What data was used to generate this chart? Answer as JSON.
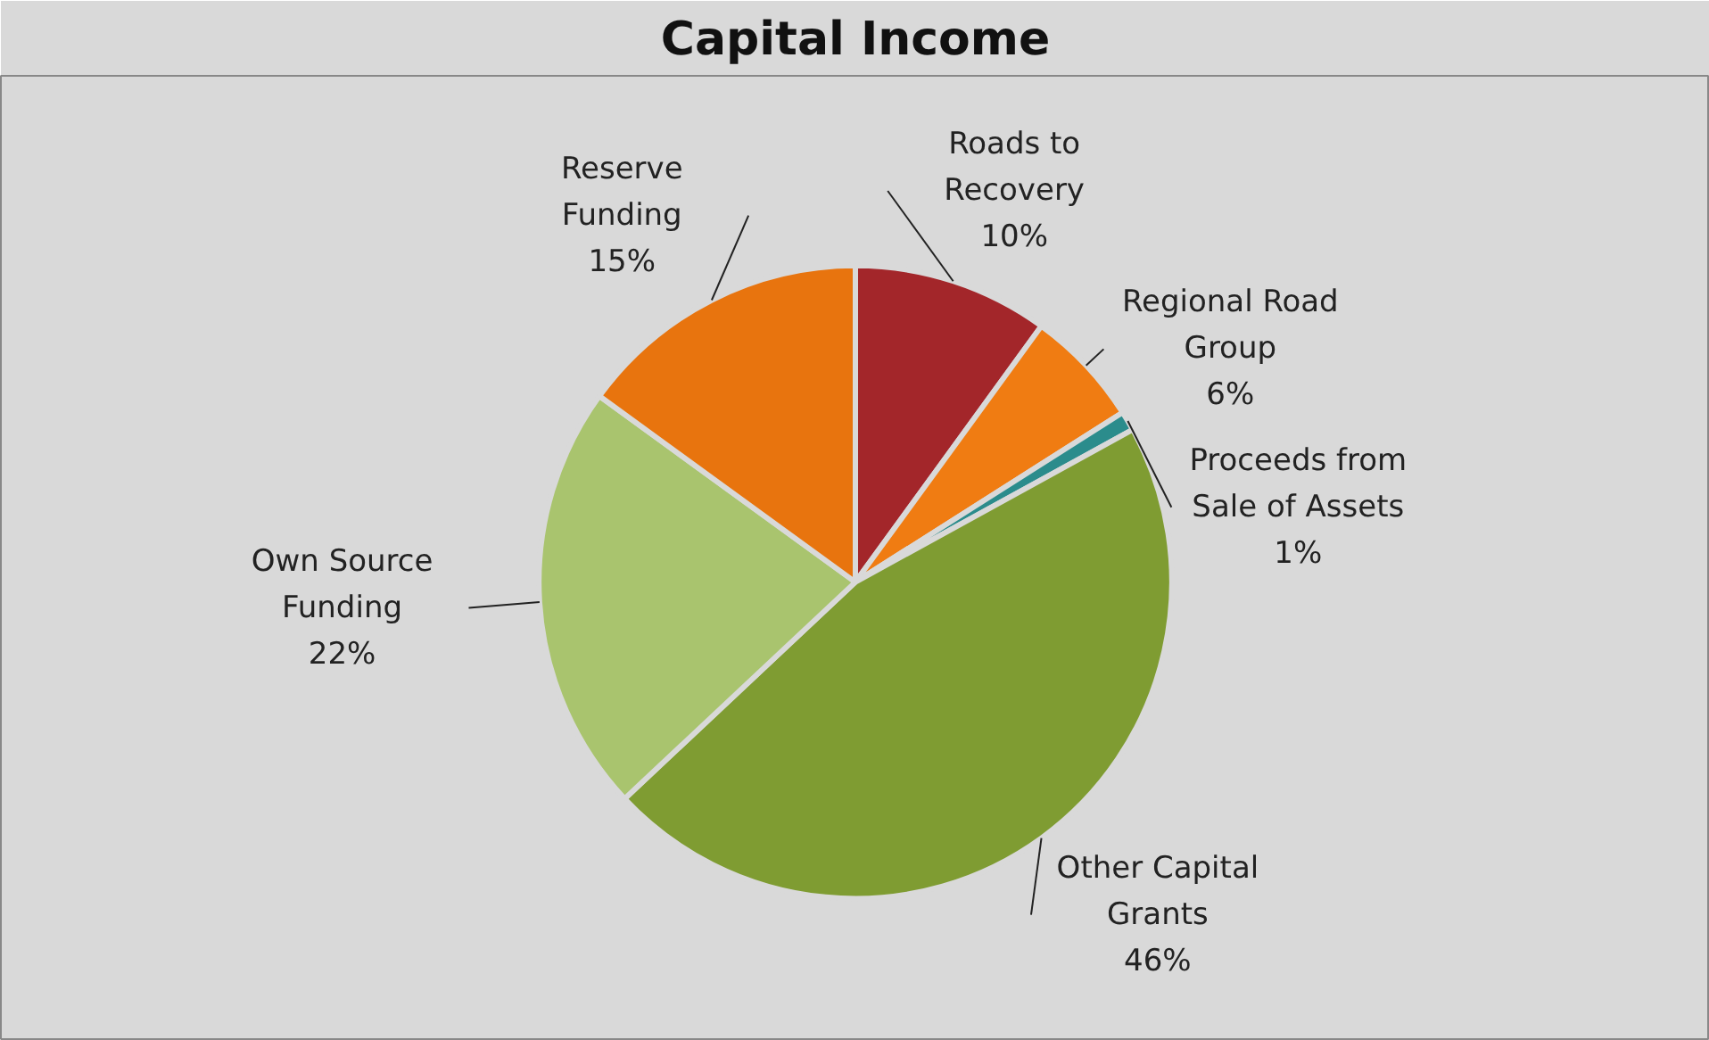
{
  "chart_data": {
    "type": "pie",
    "title": "Capital Income",
    "categories": [
      "Roads to Recovery",
      "Regional Road Group",
      "Proceeds from Sale of Assets",
      "Other Capital Grants",
      "Own Source Funding",
      "Reserve Funding"
    ],
    "values": [
      10,
      6,
      1,
      46,
      22,
      15
    ],
    "value_labels": [
      "10%",
      "6%",
      "1%",
      "46%",
      "22%",
      "15%"
    ],
    "colors": [
      "#a3262a",
      "#f07c12",
      "#2b8c8c",
      "#7f9c32",
      "#a9c46e",
      "#e8740e"
    ],
    "legend": false
  }
}
